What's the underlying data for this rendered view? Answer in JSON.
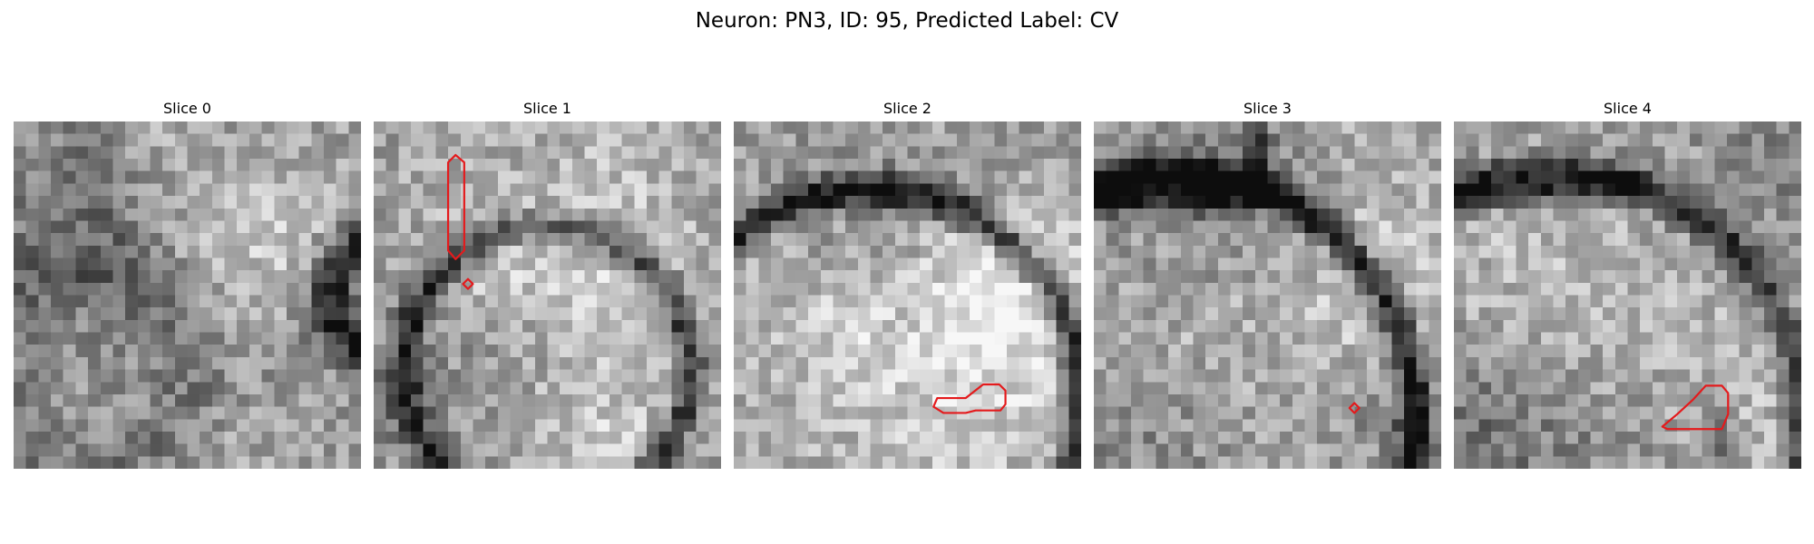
{
  "figure": {
    "title": "Neuron: PN3, ID: 95, Predicted Label: CV"
  },
  "panels": [
    {
      "title": "Slice 0"
    },
    {
      "title": "Slice 1"
    },
    {
      "title": "Slice 2"
    },
    {
      "title": "Slice 3"
    },
    {
      "title": "Slice 4"
    }
  ],
  "colors": {
    "contour": "#e41a1c",
    "background": "#ffffff"
  }
}
